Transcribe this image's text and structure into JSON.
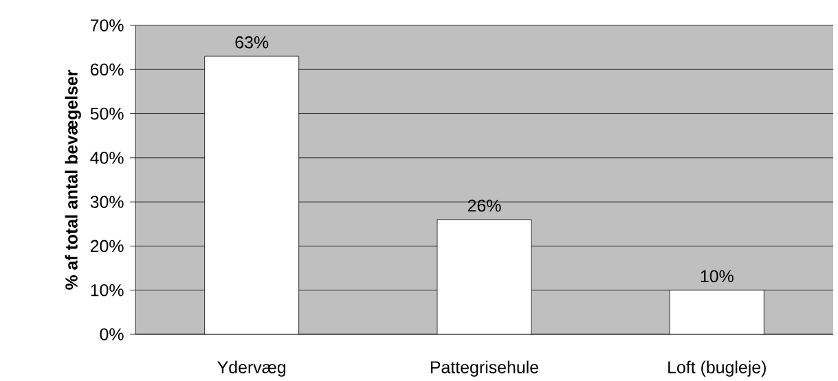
{
  "chart_data": {
    "type": "bar",
    "ylabel": "% af total antal bevægelser",
    "categories": [
      "Ydervæg",
      "Pattegrisehule",
      "Loft (bugleje)"
    ],
    "values": [
      63,
      26,
      10
    ],
    "value_labels": [
      "63%",
      "26%",
      "10%"
    ],
    "color": "#ffffff",
    "ylim": [
      0,
      70
    ],
    "yticks": [
      {
        "value": 0,
        "label": "0%"
      },
      {
        "value": 10,
        "label": "10%"
      },
      {
        "value": 20,
        "label": "20%"
      },
      {
        "value": 30,
        "label": "30%"
      },
      {
        "value": 40,
        "label": "40%"
      },
      {
        "value": 50,
        "label": "50%"
      },
      {
        "value": 60,
        "label": "60%"
      },
      {
        "value": 70,
        "label": "70%"
      }
    ],
    "grid": "y"
  }
}
